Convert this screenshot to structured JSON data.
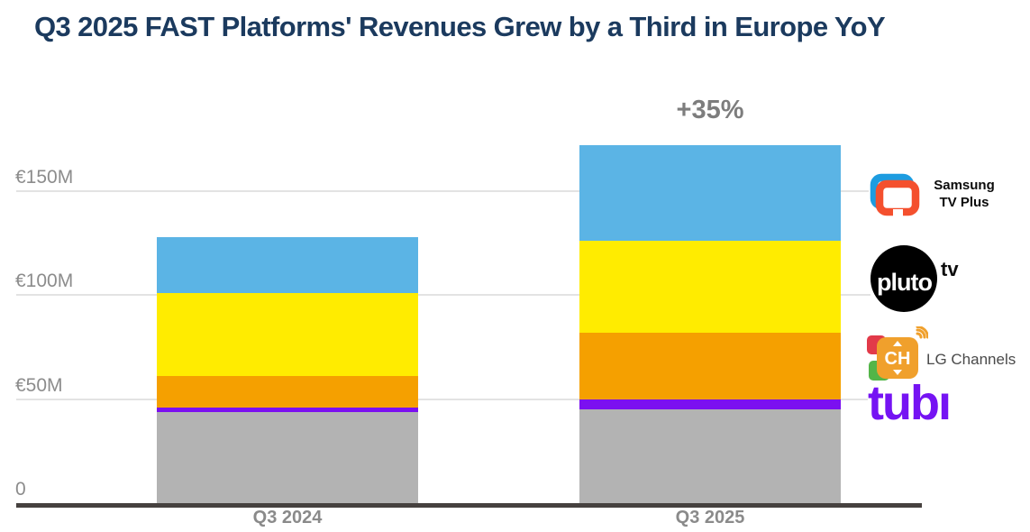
{
  "title": "Q3 2025 FAST Platforms' Revenues Grew by a Third in Europe YoY",
  "annotation": "+35%",
  "chart_data": {
    "type": "bar",
    "stacked": true,
    "unit": "EUR millions (€M)",
    "categories": [
      "Q3 2024",
      "Q3 2025"
    ],
    "series": [
      {
        "name": "Other (gray, unlabeled)",
        "key": "other",
        "color": "#b3b3b3",
        "values": [
          44,
          45
        ]
      },
      {
        "name": "Tubi",
        "key": "tubi",
        "color": "#7b10f0",
        "values": [
          2,
          5
        ]
      },
      {
        "name": "LG Channels",
        "key": "lg-channels",
        "color": "#f5a000",
        "values": [
          15,
          32
        ]
      },
      {
        "name": "Pluto TV",
        "key": "pluto-tv",
        "color": "#ffec00",
        "values": [
          40,
          44
        ]
      },
      {
        "name": "Samsung TV Plus",
        "key": "samsung-tv-plus",
        "color": "#5bb4e5",
        "values": [
          27,
          46
        ]
      }
    ],
    "totals": [
      128,
      172
    ],
    "growth_annotation": "+35%",
    "yticks": [
      {
        "value": 0,
        "label": "0"
      },
      {
        "value": 50,
        "label": "€50M"
      },
      {
        "value": 100,
        "label": "€100M"
      },
      {
        "value": 150,
        "label": "€150M"
      }
    ],
    "ylim": [
      0,
      180
    ],
    "grid": true,
    "legend_position": "right"
  },
  "legend": {
    "samsung": {
      "line1": "Samsung",
      "line2": "TV Plus"
    },
    "pluto": {
      "logo_word": "pluto",
      "logo_suffix": "tv"
    },
    "lg": {
      "logo_word": "CH",
      "label": "LG Channels"
    },
    "tubi": {
      "logo_word": "tubı"
    }
  }
}
